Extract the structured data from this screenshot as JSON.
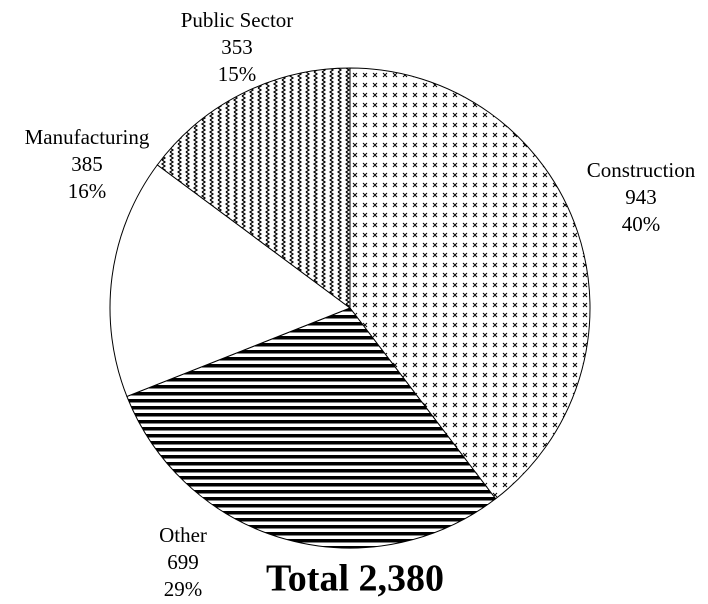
{
  "chart_data": {
    "type": "pie",
    "categories": [
      "Construction",
      "Other",
      "Manufacturing",
      "Public Sector"
    ],
    "values": [
      943,
      699,
      385,
      353
    ],
    "percents": [
      40,
      29,
      16,
      15
    ],
    "percent_labels": [
      "40%",
      "29%",
      "16%",
      "15%"
    ],
    "patterns": [
      "cross",
      "hline",
      "none",
      "wave"
    ],
    "annotation": "Total 2,380"
  }
}
